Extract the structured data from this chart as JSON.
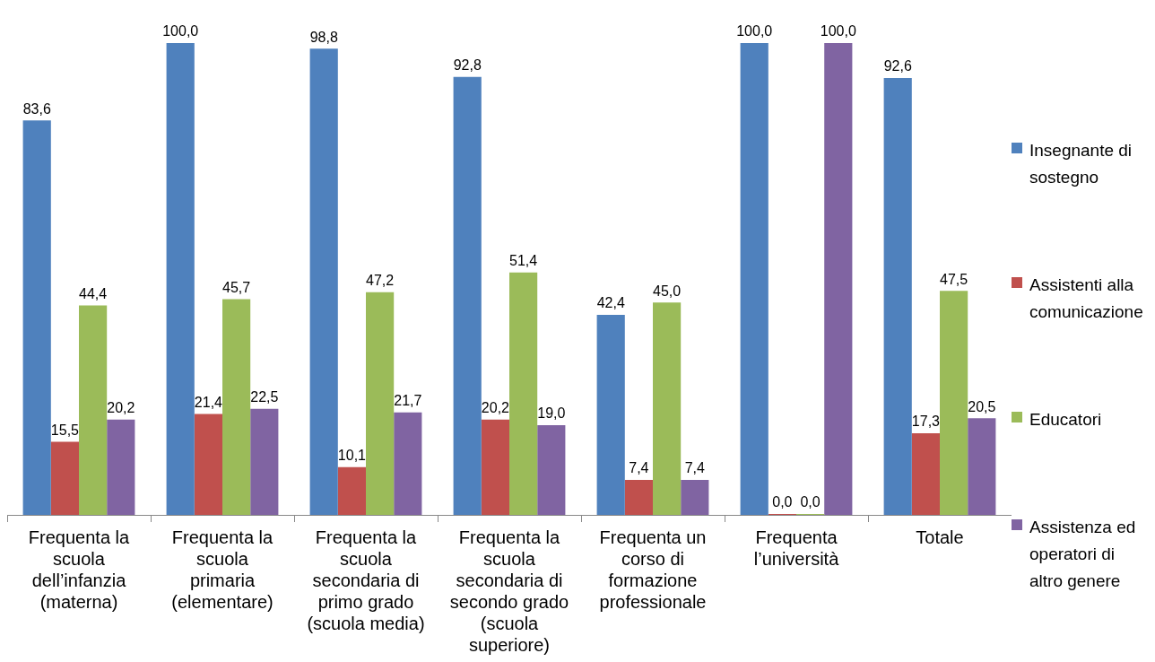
{
  "chart_data": {
    "type": "bar",
    "categories": [
      "Frequenta la scuola dell’infanzia (materna)",
      "Frequenta la scuola primaria (elementare)",
      "Frequenta la scuola secondaria di primo grado (scuola media)",
      "Frequenta la scuola secondaria di secondo grado (scuola superiore)",
      "Frequenta un corso di formazione professionale",
      "Frequenta l’università",
      "Totale"
    ],
    "series": [
      {
        "name": "Insegnante di sostegno",
        "color": "#4f81bd",
        "values": [
          83.6,
          100.0,
          98.8,
          92.8,
          42.4,
          100.0,
          92.6
        ],
        "value_labels": [
          "83,6",
          "100,0",
          "98,8",
          "92,8",
          "42,4",
          "100,0",
          "92,6"
        ]
      },
      {
        "name": "Assistenti alla comunicazione",
        "color": "#c0504d",
        "values": [
          15.5,
          21.4,
          10.1,
          20.2,
          7.4,
          0.0,
          17.3
        ],
        "value_labels": [
          "15,5",
          "21,4",
          "10,1",
          "20,2",
          "7,4",
          "0,0",
          "17,3"
        ]
      },
      {
        "name": "Educatori",
        "color": "#9bbb59",
        "values": [
          44.4,
          45.7,
          47.2,
          51.4,
          45.0,
          0.0,
          47.5
        ],
        "value_labels": [
          "44,4",
          "45,7",
          "47,2",
          "51,4",
          "45,0",
          "0,0",
          "47,5"
        ]
      },
      {
        "name": "Assistenza ed operatori di altro genere",
        "color": "#8064a2",
        "values": [
          20.2,
          22.5,
          21.7,
          19.0,
          7.4,
          100.0,
          20.5
        ],
        "value_labels": [
          "20,2",
          "22,5",
          "21,7",
          "19,0",
          "7,4",
          "100,0",
          "20,5"
        ]
      }
    ],
    "legend": "right",
    "grid": false
  }
}
